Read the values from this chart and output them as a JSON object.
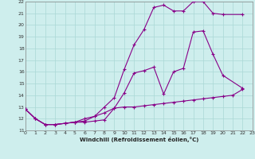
{
  "xlabel": "Windchill (Refroidissement éolien,°C)",
  "bg_color": "#ceeeed",
  "grid_color": "#aad8d6",
  "line_color": "#880088",
  "xlim": [
    0,
    23
  ],
  "ylim": [
    11,
    22
  ],
  "xticks": [
    0,
    1,
    2,
    3,
    4,
    5,
    6,
    7,
    8,
    9,
    10,
    11,
    12,
    13,
    14,
    15,
    16,
    17,
    18,
    19,
    20,
    21,
    22,
    23
  ],
  "yticks": [
    11,
    12,
    13,
    14,
    15,
    16,
    17,
    18,
    19,
    20,
    21,
    22
  ],
  "line1_x": [
    0,
    1,
    2,
    3,
    4,
    5,
    6,
    7,
    8,
    9,
    10,
    11,
    12,
    13,
    14,
    15,
    16,
    17,
    18,
    19,
    20,
    21,
    22
  ],
  "line1_y": [
    12.8,
    12.0,
    11.5,
    11.5,
    11.6,
    11.7,
    11.7,
    11.8,
    11.9,
    12.9,
    13.0,
    13.0,
    13.1,
    13.2,
    13.3,
    13.4,
    13.5,
    13.6,
    13.7,
    13.8,
    13.9,
    14.0,
    14.5
  ],
  "line2_x": [
    0,
    1,
    2,
    3,
    4,
    5,
    6,
    7,
    8,
    9,
    10,
    11,
    12,
    13,
    14,
    15,
    16,
    17,
    18,
    19,
    20,
    22
  ],
  "line2_y": [
    12.8,
    12.0,
    11.5,
    11.5,
    11.6,
    11.7,
    12.0,
    12.2,
    12.5,
    12.9,
    14.2,
    15.9,
    16.1,
    16.4,
    14.1,
    16.0,
    16.3,
    19.4,
    19.5,
    17.5,
    15.7,
    14.6
  ],
  "line3_x": [
    0,
    1,
    2,
    3,
    5,
    6,
    7,
    8,
    9,
    10,
    11,
    12,
    13,
    14,
    15,
    16,
    17,
    18,
    19,
    20,
    22
  ],
  "line3_y": [
    12.8,
    12.0,
    11.5,
    11.5,
    11.7,
    11.8,
    12.2,
    13.0,
    13.8,
    16.2,
    18.3,
    19.6,
    21.5,
    21.7,
    21.2,
    21.2,
    22.0,
    22.0,
    21.0,
    20.9,
    20.9
  ]
}
